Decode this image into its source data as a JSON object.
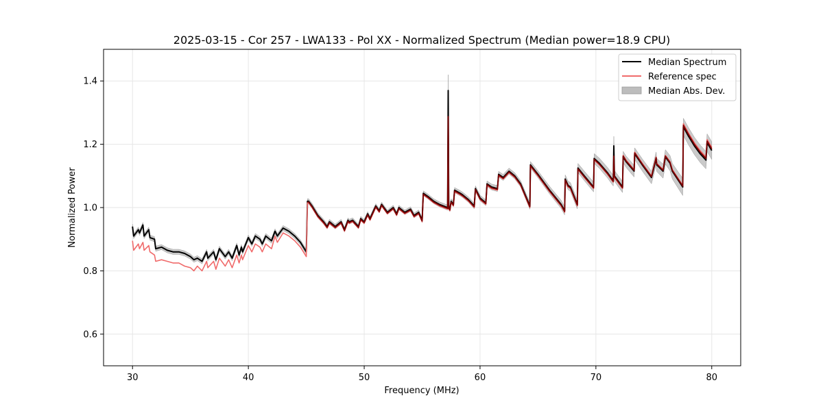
{
  "chart_data": {
    "type": "line",
    "title": "2025-03-15 - Cor 257 - LWA133 - Pol XX - Normalized Spectrum (Median power=18.9 CPU)",
    "xlabel": "Frequency (MHz)",
    "ylabel": "Normalized Power",
    "xlim": [
      27.5,
      82.5
    ],
    "ylim": [
      0.5,
      1.5
    ],
    "xticks": [
      30,
      40,
      50,
      60,
      70,
      80
    ],
    "xtick_labels": [
      "30",
      "40",
      "50",
      "60",
      "70",
      "80"
    ],
    "yticks": [
      0.6,
      0.8,
      1.0,
      1.2,
      1.4
    ],
    "ytick_labels": [
      "0.6",
      "0.8",
      "1.0",
      "1.2",
      "1.4"
    ],
    "grid": true,
    "legend_position": "top-right",
    "legend": [
      "Median Spectrum",
      "Reference spec",
      "Median Abs. Dev."
    ],
    "colors": {
      "median": "#000000",
      "reference": "#f06a6a",
      "overlap": "#7a0000",
      "mad_fill": "#bdbdbd",
      "grid": "#e6e6e6"
    },
    "series": [
      {
        "name": "Median Spectrum",
        "x": [
          30.0,
          30.1,
          30.5,
          30.6,
          30.9,
          31.0,
          31.4,
          31.5,
          31.9,
          32.0,
          32.5,
          33.0,
          33.5,
          34.0,
          34.5,
          35.0,
          35.3,
          35.6,
          36.0,
          36.4,
          36.5,
          37.0,
          37.2,
          37.5,
          38.0,
          38.3,
          38.6,
          39.0,
          39.2,
          39.4,
          39.5,
          40.0,
          40.3,
          40.6,
          41.0,
          41.2,
          41.5,
          42.0,
          42.3,
          42.5,
          43.0,
          43.5,
          44.0,
          44.5,
          45.0,
          45.1,
          45.2,
          45.5,
          46.0,
          46.5,
          46.8,
          47.0,
          47.5,
          48.0,
          48.3,
          48.6,
          48.7,
          49.0,
          49.5,
          49.7,
          50.0,
          50.3,
          50.5,
          51.0,
          51.3,
          51.5,
          52.0,
          52.5,
          52.8,
          53.0,
          53.5,
          54.0,
          54.3,
          54.7,
          55.0,
          55.1,
          55.5,
          56.0,
          56.5,
          57.2,
          57.25,
          57.3,
          57.4,
          57.5,
          57.7,
          57.8,
          58.3,
          58.5,
          59.0,
          59.5,
          59.6,
          60.0,
          60.5,
          60.6,
          61.0,
          61.5,
          61.6,
          62.0,
          62.5,
          63.0,
          63.5,
          64.3,
          64.35,
          65.0,
          66.0,
          67.0,
          67.3,
          67.35,
          67.6,
          67.8,
          68.4,
          68.45,
          69.0,
          69.8,
          69.85,
          70.3,
          71.0,
          71.5,
          71.55,
          71.6,
          72.0,
          72.3,
          72.35,
          72.6,
          73.3,
          73.35,
          74.0,
          74.8,
          75.2,
          75.25,
          75.8,
          76.0,
          76.4,
          76.6,
          77.5,
          77.55,
          78.0,
          78.5,
          79.0,
          79.5,
          79.6,
          80.0
        ],
        "y": [
          0.94,
          0.91,
          0.93,
          0.92,
          0.945,
          0.91,
          0.93,
          0.905,
          0.9,
          0.87,
          0.875,
          0.865,
          0.86,
          0.86,
          0.855,
          0.845,
          0.835,
          0.84,
          0.83,
          0.86,
          0.84,
          0.86,
          0.835,
          0.87,
          0.845,
          0.86,
          0.84,
          0.88,
          0.85,
          0.875,
          0.86,
          0.905,
          0.885,
          0.91,
          0.9,
          0.885,
          0.91,
          0.895,
          0.925,
          0.91,
          0.935,
          0.925,
          0.91,
          0.89,
          0.86,
          1.02,
          1.02,
          1.005,
          0.975,
          0.955,
          0.94,
          0.955,
          0.94,
          0.955,
          0.93,
          0.96,
          0.955,
          0.96,
          0.94,
          0.965,
          0.955,
          0.98,
          0.965,
          1.005,
          0.99,
          1.01,
          0.985,
          1.0,
          0.98,
          1.0,
          0.985,
          0.995,
          0.975,
          0.985,
          0.96,
          1.045,
          1.035,
          1.02,
          1.01,
          1.0,
          1.37,
          1.0,
          0.995,
          1.02,
          1.01,
          1.055,
          1.045,
          1.04,
          1.025,
          1.005,
          1.06,
          1.03,
          1.015,
          1.075,
          1.065,
          1.06,
          1.105,
          1.095,
          1.115,
          1.1,
          1.075,
          1.005,
          1.135,
          1.105,
          1.055,
          1.01,
          0.99,
          1.09,
          1.07,
          1.065,
          1.01,
          1.125,
          1.1,
          1.065,
          1.155,
          1.14,
          1.11,
          1.085,
          1.195,
          1.1,
          1.08,
          1.065,
          1.16,
          1.145,
          1.115,
          1.17,
          1.135,
          1.095,
          1.155,
          1.135,
          1.115,
          1.16,
          1.14,
          1.115,
          1.065,
          1.255,
          1.225,
          1.195,
          1.17,
          1.15,
          1.205,
          1.18
        ]
      },
      {
        "name": "Reference spec",
        "x": [
          30.0,
          30.1,
          30.5,
          30.6,
          30.9,
          31.0,
          31.4,
          31.5,
          31.9,
          32.0,
          32.5,
          33.0,
          33.5,
          34.0,
          34.5,
          35.0,
          35.3,
          35.6,
          36.0,
          36.4,
          36.5,
          37.0,
          37.2,
          37.5,
          38.0,
          38.3,
          38.6,
          39.0,
          39.2,
          39.4,
          39.5,
          40.0,
          40.3,
          40.6,
          41.0,
          41.2,
          41.5,
          42.0,
          42.3,
          42.5,
          43.0,
          43.5,
          44.0,
          44.5,
          45.0,
          45.1,
          45.2,
          45.5,
          46.0,
          46.5,
          46.8,
          47.0,
          47.5,
          48.0,
          48.3,
          48.6,
          48.7,
          49.0,
          49.5,
          49.7,
          50.0,
          50.3,
          50.5,
          51.0,
          51.3,
          51.5,
          52.0,
          52.5,
          52.8,
          53.0,
          53.5,
          54.0,
          54.3,
          54.7,
          55.0,
          55.1,
          55.5,
          56.0,
          56.5,
          57.2,
          57.25,
          57.3,
          57.4,
          57.5,
          57.7,
          57.8,
          58.3,
          58.5,
          59.0,
          59.5,
          59.6,
          60.0,
          60.5,
          60.6,
          61.0,
          61.5,
          61.6,
          62.0,
          62.5,
          63.0,
          63.5,
          64.3,
          64.35,
          65.0,
          66.0,
          67.0,
          67.3,
          67.35,
          67.6,
          67.8,
          68.4,
          68.45,
          69.0,
          69.8,
          69.85,
          70.3,
          71.0,
          71.5,
          71.55,
          71.6,
          72.0,
          72.3,
          72.35,
          72.6,
          73.3,
          73.35,
          74.0,
          74.8,
          75.2,
          75.25,
          75.8,
          76.0,
          76.4,
          76.6,
          77.5,
          77.55,
          78.0,
          78.5,
          79.0,
          79.5,
          79.6,
          80.0
        ],
        "y": [
          0.895,
          0.865,
          0.885,
          0.87,
          0.89,
          0.865,
          0.88,
          0.86,
          0.85,
          0.83,
          0.835,
          0.83,
          0.825,
          0.825,
          0.815,
          0.81,
          0.8,
          0.815,
          0.8,
          0.83,
          0.81,
          0.83,
          0.805,
          0.84,
          0.815,
          0.835,
          0.81,
          0.85,
          0.825,
          0.85,
          0.835,
          0.88,
          0.86,
          0.885,
          0.875,
          0.86,
          0.885,
          0.87,
          0.91,
          0.89,
          0.92,
          0.91,
          0.895,
          0.875,
          0.845,
          1.015,
          1.015,
          1.0,
          0.97,
          0.95,
          0.935,
          0.95,
          0.935,
          0.95,
          0.925,
          0.955,
          0.95,
          0.955,
          0.935,
          0.96,
          0.95,
          0.975,
          0.96,
          1.0,
          0.985,
          1.005,
          0.98,
          0.995,
          0.975,
          0.995,
          0.98,
          0.99,
          0.97,
          0.98,
          0.955,
          1.04,
          1.03,
          1.015,
          1.005,
          0.995,
          1.205,
          0.995,
          0.99,
          1.015,
          1.005,
          1.05,
          1.04,
          1.035,
          1.02,
          1.0,
          1.055,
          1.025,
          1.01,
          1.07,
          1.06,
          1.055,
          1.1,
          1.09,
          1.11,
          1.095,
          1.07,
          1.0,
          1.13,
          1.1,
          1.05,
          1.005,
          0.985,
          1.085,
          1.065,
          1.06,
          1.005,
          1.12,
          1.095,
          1.06,
          1.15,
          1.135,
          1.105,
          1.08,
          1.13,
          1.095,
          1.075,
          1.06,
          1.165,
          1.15,
          1.12,
          1.175,
          1.14,
          1.1,
          1.16,
          1.14,
          1.12,
          1.165,
          1.145,
          1.12,
          1.07,
          1.265,
          1.235,
          1.205,
          1.18,
          1.16,
          1.215,
          1.19
        ]
      },
      {
        "name": "Median Abs. Dev.",
        "x": [
          30.0,
          35.0,
          45.0,
          52.0,
          57.2,
          57.25,
          57.3,
          60.0,
          64.0,
          68.0,
          71.5,
          71.55,
          71.6,
          75.0,
          77.5,
          80.0
        ],
        "halfwidth": [
          0.008,
          0.008,
          0.008,
          0.007,
          0.008,
          0.05,
          0.008,
          0.009,
          0.01,
          0.014,
          0.017,
          0.03,
          0.017,
          0.02,
          0.027,
          0.028
        ]
      }
    ]
  }
}
